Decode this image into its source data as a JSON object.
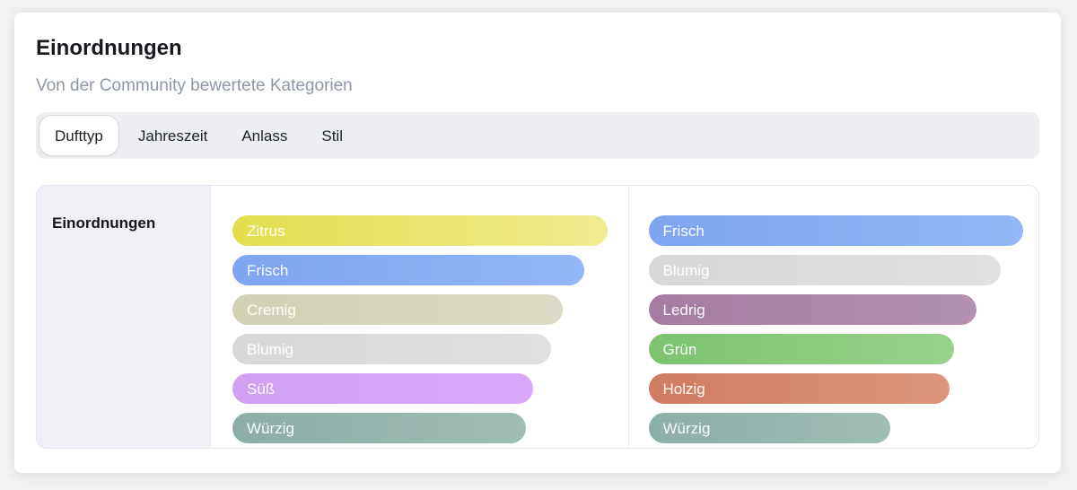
{
  "card": {
    "title": "Einordnungen",
    "subtitle": "Von der Community bewertete Kategorien"
  },
  "tabs": {
    "items": [
      {
        "label": "Dufttyp",
        "active": true
      },
      {
        "label": "Jahreszeit",
        "active": false
      },
      {
        "label": "Anlass",
        "active": false
      },
      {
        "label": "Stil",
        "active": false
      }
    ]
  },
  "classification_panel": {
    "sidebar_label": "Einordnungen",
    "columns": [
      {
        "bars": [
          {
            "label": "Zitrus",
            "width_pct": 100,
            "color_start": "#e3de4e",
            "color_end": "#efec90"
          },
          {
            "label": "Frisch",
            "width_pct": 94,
            "color_start": "#7fa5f1",
            "color_end": "#93b6f8"
          },
          {
            "label": "Cremig",
            "width_pct": 88.2,
            "color_start": "#d2d1b5",
            "color_end": "#dbdac6"
          },
          {
            "label": "Blumig",
            "width_pct": 85.1,
            "color_start": "#d7d7d6",
            "color_end": "#e0e0de"
          },
          {
            "label": "Süß",
            "width_pct": 80.3,
            "color_start": "#d2a0f3",
            "color_end": "#daa8f8"
          },
          {
            "label": "Würzig",
            "width_pct": 78.4,
            "color_start": "#8caea6",
            "color_end": "#9ebdb5"
          }
        ]
      },
      {
        "bars": [
          {
            "label": "Frisch",
            "width_pct": 100,
            "color_start": "#7fa5f1",
            "color_end": "#93b6f8"
          },
          {
            "label": "Blumig",
            "width_pct": 94.1,
            "color_start": "#d7d7d6",
            "color_end": "#e0e0de"
          },
          {
            "label": "Ledrig",
            "width_pct": 87.5,
            "color_start": "#a67b9f",
            "color_end": "#b491b0"
          },
          {
            "label": "Grün",
            "width_pct": 81.6,
            "color_start": "#7dc370",
            "color_end": "#98d28b"
          },
          {
            "label": "Holzig",
            "width_pct": 80.4,
            "color_start": "#d07b62",
            "color_end": "#de957d"
          },
          {
            "label": "Würzig",
            "width_pct": 64.5,
            "color_start": "#8cafa7",
            "color_end": "#9ebdb5"
          }
        ]
      }
    ]
  }
}
